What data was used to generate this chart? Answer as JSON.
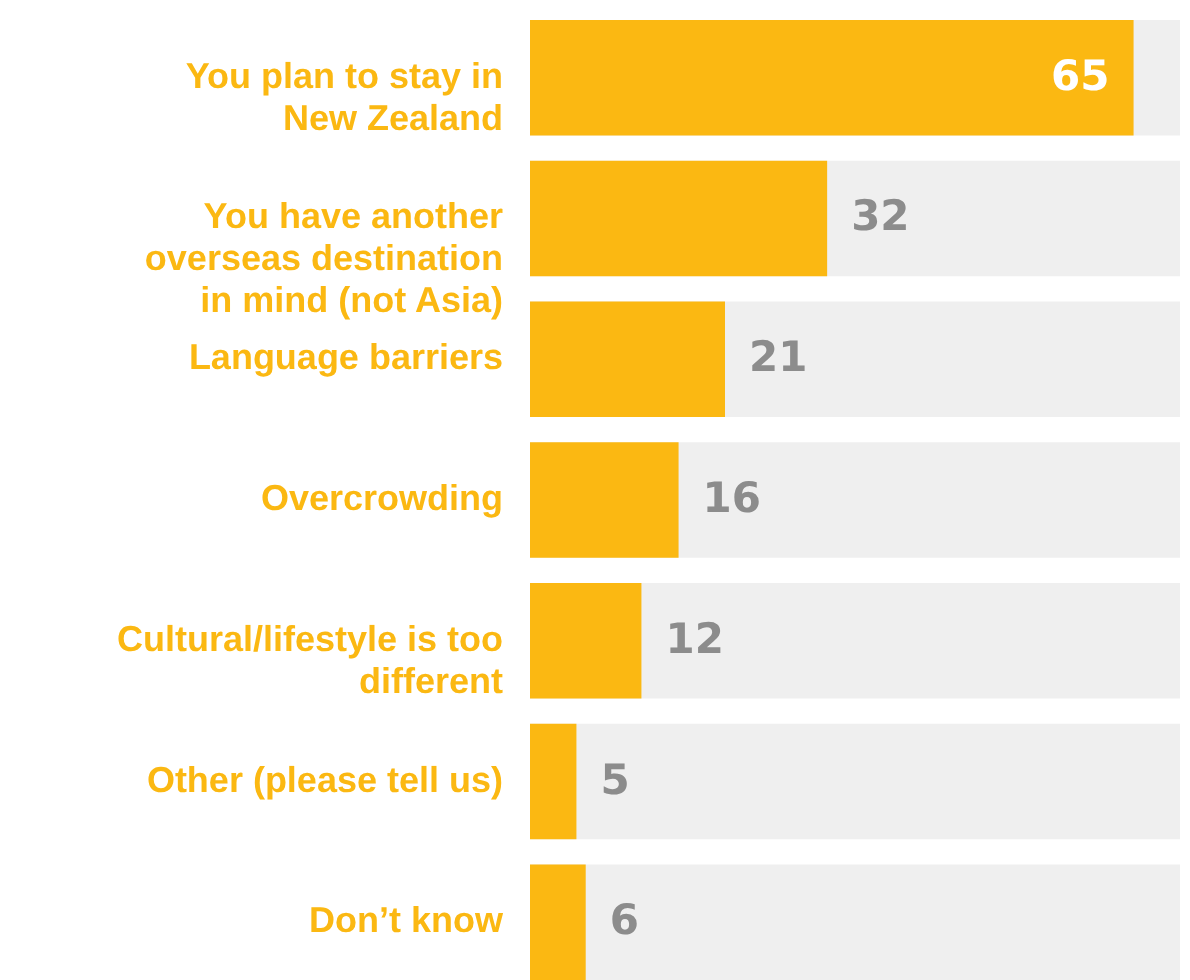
{
  "chart_data": {
    "type": "bar",
    "orientation": "horizontal",
    "data_labels": true,
    "categories": [
      "You plan to stay in New Zealand",
      "You have another overseas destination in mind (not Asia)",
      "Language barriers",
      "Overcrowding",
      "Cultural/lifestyle is too different",
      "Other (please tell us)",
      "Don’t know"
    ],
    "values": [
      65,
      32,
      21,
      16,
      12,
      5,
      6
    ],
    "color": "#fbb812",
    "xlim": [
      0,
      70
    ],
    "bands": [
      {
        "axis": "x",
        "from": 0,
        "to": 70,
        "color": "#efefef"
      }
    ]
  }
}
